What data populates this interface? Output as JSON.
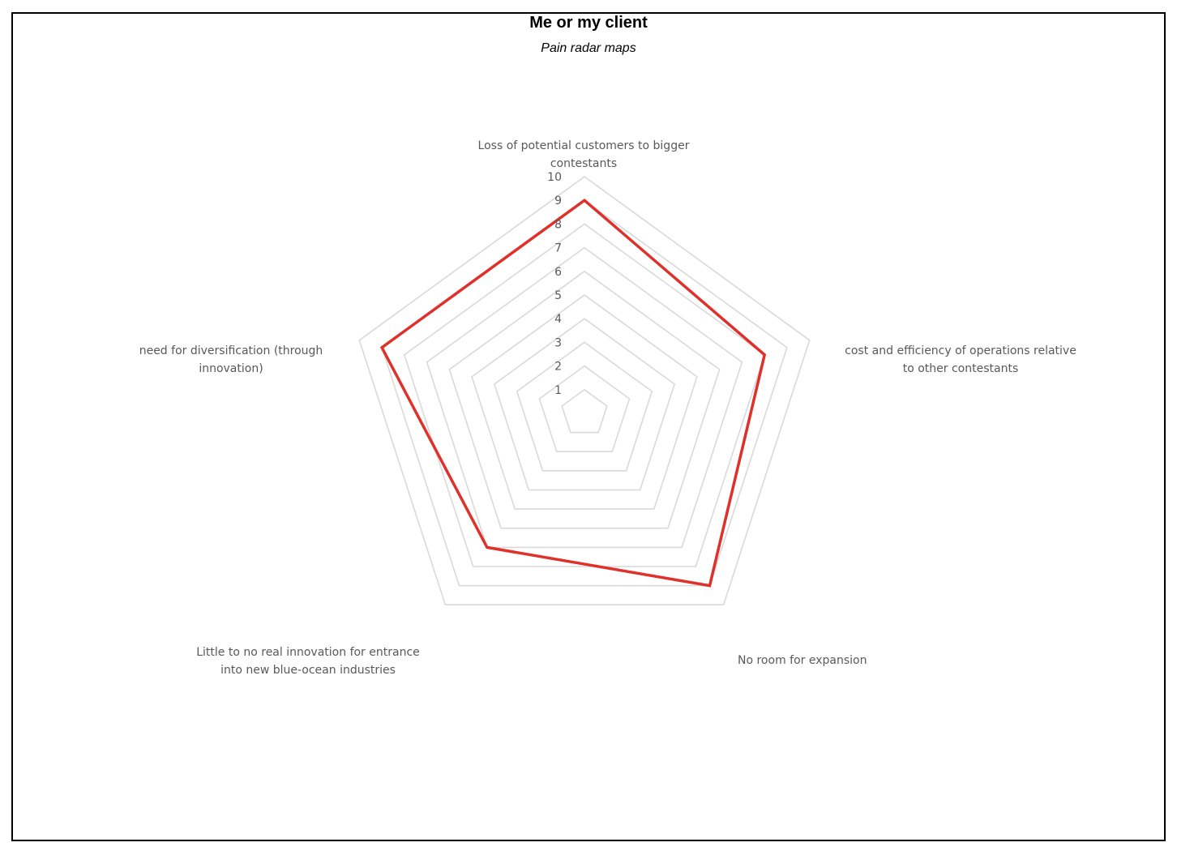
{
  "chart_data": {
    "type": "radar",
    "title": "Me or my client",
    "subtitle": "Pain radar maps",
    "categories": [
      "Loss of potential customers to bigger\ncontestants",
      "cost and efficiency of operations relative\nto other contestants",
      "No room for expansion",
      "Little to no real innovation for entrance\ninto new blue-ocean industries",
      "need for diversification (through\ninnovation)"
    ],
    "ticks": [
      "1",
      "2",
      "3",
      "4",
      "5",
      "6",
      "7",
      "8",
      "9",
      "10"
    ],
    "rlim": [
      0,
      10
    ],
    "series": [
      {
        "values": [
          9,
          8,
          9,
          7,
          9
        ]
      }
    ],
    "colors": {
      "series": "#e0302a",
      "grid": "#d9d9d9",
      "labels": "#595959"
    },
    "legend": "none",
    "grid": true
  }
}
